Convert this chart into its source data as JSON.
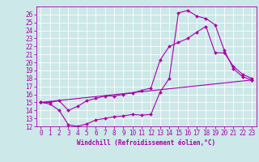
{
  "xlabel": "Windchill (Refroidissement éolien,°C)",
  "bg_color": "#cce8e8",
  "grid_color": "#ffffff",
  "line_color": "#aa00aa",
  "xlim": [
    -0.5,
    23.5
  ],
  "ylim": [
    12,
    27
  ],
  "xticks": [
    0,
    1,
    2,
    3,
    4,
    5,
    6,
    7,
    8,
    9,
    10,
    11,
    12,
    13,
    14,
    15,
    16,
    17,
    18,
    19,
    20,
    21,
    22,
    23
  ],
  "yticks": [
    12,
    13,
    14,
    15,
    16,
    17,
    18,
    19,
    20,
    21,
    22,
    23,
    24,
    25,
    26
  ],
  "curve1_x": [
    0,
    1,
    2,
    3,
    4,
    5,
    6,
    7,
    8,
    9,
    10,
    11,
    12,
    13,
    14,
    15,
    16,
    17,
    18,
    19,
    20,
    21,
    22,
    23
  ],
  "curve1_y": [
    15.0,
    14.8,
    14.0,
    12.2,
    12.0,
    12.3,
    12.8,
    13.0,
    13.2,
    13.3,
    13.5,
    13.4,
    13.5,
    16.3,
    18.0,
    26.2,
    26.5,
    25.8,
    25.5,
    24.7,
    21.5,
    19.2,
    18.2,
    17.8
  ],
  "curve2_x": [
    0,
    1,
    2,
    3,
    4,
    5,
    6,
    7,
    8,
    9,
    10,
    11,
    12,
    13,
    14,
    15,
    16,
    17,
    18,
    19,
    20,
    21,
    22,
    23
  ],
  "curve2_y": [
    15.0,
    15.0,
    15.2,
    14.0,
    14.5,
    15.2,
    15.5,
    15.8,
    15.8,
    16.0,
    16.2,
    16.5,
    16.8,
    20.3,
    22.0,
    22.5,
    23.0,
    23.8,
    24.5,
    21.2,
    21.2,
    19.5,
    18.5,
    18.0
  ],
  "curve3_x": [
    0,
    23
  ],
  "curve3_y": [
    15.0,
    17.8
  ],
  "marker": "D",
  "markersize": 2.0,
  "linewidth": 0.8,
  "tick_fontsize": 5.5,
  "xlabel_fontsize": 5.5
}
